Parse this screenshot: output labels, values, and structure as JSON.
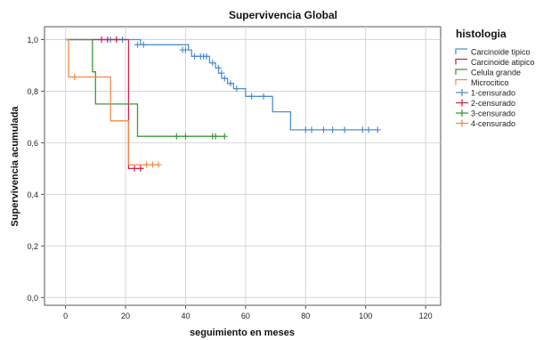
{
  "chart_data": {
    "type": "line",
    "subtype": "kaplan-meier step",
    "title": "Supervivencia Global",
    "xlabel": "seguimiento en meses",
    "ylabel": "Supervivencia acumulada",
    "xlim": [
      -7,
      125
    ],
    "ylim": [
      -0.03,
      1.05
    ],
    "x_ticks": [
      0,
      20,
      40,
      60,
      80,
      100,
      120
    ],
    "y_ticks": [
      0.0,
      0.2,
      0.4,
      0.6,
      0.8,
      1.0
    ],
    "y_tick_labels": [
      "0,0",
      "0,2",
      "0,4",
      "0,6",
      "0,8",
      "1,0"
    ],
    "grid": true,
    "legend": {
      "title": "histologia",
      "placement": "right",
      "entries": [
        {
          "label": "Carcinoide tipico",
          "color": "#4f8fd0",
          "marker": "step"
        },
        {
          "label": "Carcinoide atipico",
          "color": "#d0244a",
          "marker": "step"
        },
        {
          "label": "Celula grande",
          "color": "#3a9a3a",
          "marker": "step"
        },
        {
          "label": "Microcitico",
          "color": "#f08a4b",
          "marker": "step"
        },
        {
          "label": "1-censurado",
          "color": "#4f8fd0",
          "marker": "plus"
        },
        {
          "label": "2-censurado",
          "color": "#d0244a",
          "marker": "plus"
        },
        {
          "label": "3-censurado",
          "color": "#3a9a3a",
          "marker": "plus"
        },
        {
          "label": "4-censurado",
          "color": "#f08a4b",
          "marker": "plus"
        }
      ]
    },
    "series": [
      {
        "name": "Carcinoide tipico",
        "color": "#4f8fd0",
        "steps": [
          [
            0,
            1.0
          ],
          [
            25,
            0.98
          ],
          [
            41,
            0.96
          ],
          [
            42,
            0.935
          ],
          [
            48,
            0.91
          ],
          [
            50,
            0.89
          ],
          [
            51,
            0.87
          ],
          [
            52,
            0.85
          ],
          [
            54,
            0.83
          ],
          [
            56,
            0.81
          ],
          [
            60,
            0.78
          ],
          [
            69,
            0.72
          ],
          [
            75,
            0.65
          ],
          [
            104,
            0.65
          ]
        ],
        "censored": [
          [
            15,
            1.0
          ],
          [
            17,
            1.0
          ],
          [
            19,
            1.0
          ],
          [
            24,
            0.98
          ],
          [
            26,
            0.98
          ],
          [
            39,
            0.96
          ],
          [
            40,
            0.96
          ],
          [
            43,
            0.935
          ],
          [
            45,
            0.935
          ],
          [
            46,
            0.935
          ],
          [
            47,
            0.935
          ],
          [
            49,
            0.91
          ],
          [
            51,
            0.89
          ],
          [
            52,
            0.87
          ],
          [
            53,
            0.85
          ],
          [
            55,
            0.83
          ],
          [
            57,
            0.81
          ],
          [
            62,
            0.78
          ],
          [
            66,
            0.78
          ],
          [
            80,
            0.65
          ],
          [
            82,
            0.65
          ],
          [
            86,
            0.65
          ],
          [
            89,
            0.65
          ],
          [
            93,
            0.65
          ],
          [
            99,
            0.65
          ],
          [
            101,
            0.65
          ],
          [
            104,
            0.65
          ]
        ]
      },
      {
        "name": "Carcinoide atipico",
        "color": "#d0244a",
        "steps": [
          [
            0,
            1.0
          ],
          [
            20,
            1.0
          ],
          [
            21,
            0.5
          ],
          [
            26,
            0.5
          ]
        ],
        "censored": [
          [
            12,
            1.0
          ],
          [
            14,
            1.0
          ],
          [
            17,
            1.0
          ],
          [
            23,
            0.5
          ],
          [
            25,
            0.5
          ]
        ]
      },
      {
        "name": "Celula grande",
        "color": "#3a9a3a",
        "steps": [
          [
            0,
            1.0
          ],
          [
            9,
            0.875
          ],
          [
            10,
            0.75
          ],
          [
            24,
            0.625
          ],
          [
            53,
            0.625
          ]
        ],
        "censored": [
          [
            37,
            0.625
          ],
          [
            40,
            0.625
          ],
          [
            49,
            0.625
          ],
          [
            50,
            0.625
          ],
          [
            53,
            0.625
          ]
        ]
      },
      {
        "name": "Microcitico",
        "color": "#f08a4b",
        "steps": [
          [
            0,
            1.0
          ],
          [
            1,
            0.855
          ],
          [
            15,
            0.685
          ],
          [
            21,
            0.515
          ],
          [
            31,
            0.515
          ]
        ],
        "censored": [
          [
            3,
            0.855
          ],
          [
            27,
            0.515
          ],
          [
            29,
            0.515
          ],
          [
            31,
            0.515
          ]
        ]
      }
    ]
  }
}
